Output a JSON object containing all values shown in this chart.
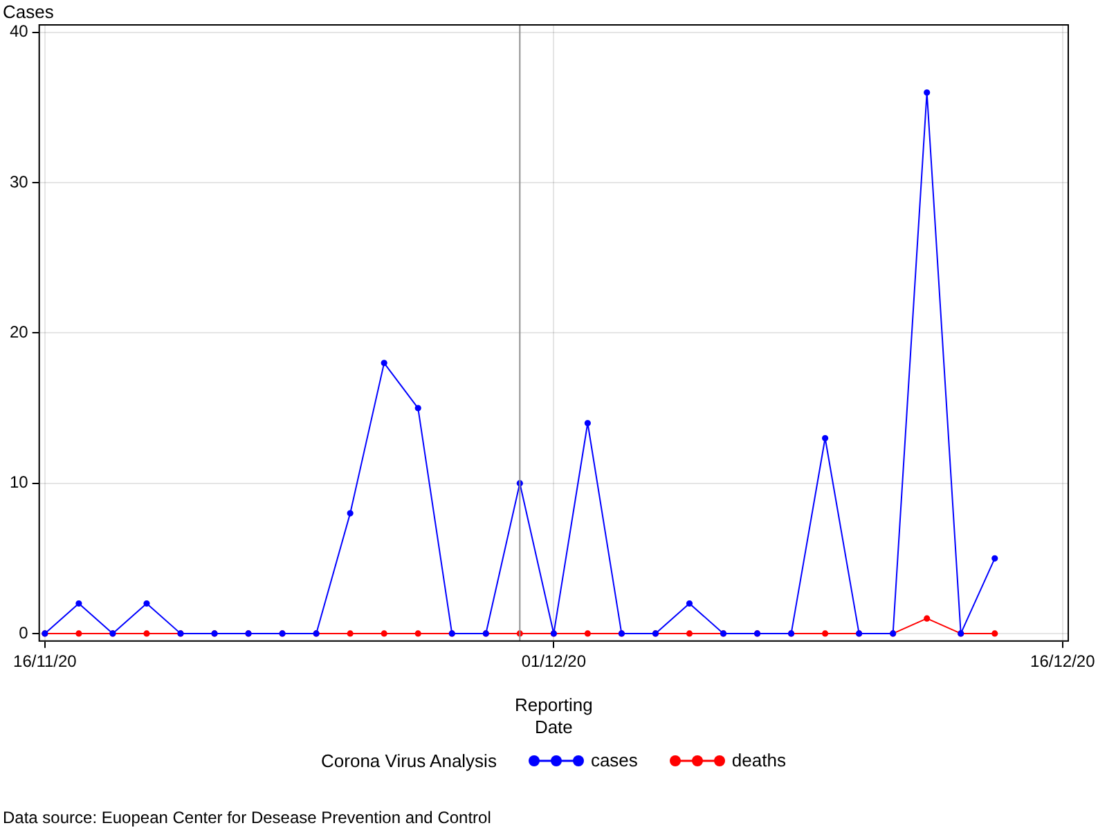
{
  "chart_data": {
    "type": "line",
    "xlabel": "Reporting Date",
    "ylabel": "Cases",
    "legend_title": "Corona Virus Analysis",
    "x": [
      "2020-11-16",
      "2020-11-17",
      "2020-11-18",
      "2020-11-19",
      "2020-11-20",
      "2020-11-21",
      "2020-11-22",
      "2020-11-23",
      "2020-11-24",
      "2020-11-25",
      "2020-11-26",
      "2020-11-27",
      "2020-11-28",
      "2020-11-29",
      "2020-11-30",
      "2020-12-01",
      "2020-12-02",
      "2020-12-03",
      "2020-12-04",
      "2020-12-05",
      "2020-12-06",
      "2020-12-07",
      "2020-12-08",
      "2020-12-09",
      "2020-12-10",
      "2020-12-11",
      "2020-12-12",
      "2020-12-13",
      "2020-12-14"
    ],
    "series": [
      {
        "name": "cases",
        "color": "#0000ff",
        "values": [
          0,
          2,
          0,
          2,
          0,
          0,
          0,
          0,
          0,
          8,
          18,
          15,
          0,
          0,
          10,
          0,
          14,
          0,
          0,
          2,
          0,
          0,
          0,
          13,
          0,
          0,
          36,
          0,
          5
        ]
      },
      {
        "name": "deaths",
        "color": "#ff0000",
        "values": [
          0,
          0,
          0,
          0,
          0,
          0,
          0,
          0,
          0,
          0,
          0,
          0,
          0,
          0,
          0,
          0,
          0,
          0,
          0,
          0,
          0,
          0,
          0,
          0,
          0,
          0,
          1,
          0,
          0
        ]
      }
    ],
    "xlim": [
      "2020-11-15T20:00",
      "2020-12-16T04:00"
    ],
    "xticks": [
      {
        "value": "2020-11-16",
        "label": "16/11/20"
      },
      {
        "value": "2020-12-01",
        "label": "01/12/20"
      },
      {
        "value": "2020-12-16",
        "label": "16/12/20"
      }
    ],
    "ylim": [
      -0.5,
      40.5
    ],
    "yticks": [
      0,
      10,
      20,
      30,
      40
    ],
    "ref_lines": [
      {
        "axis": "x",
        "value": "2020-11-30",
        "color": "#909090"
      }
    ],
    "grid": true,
    "legend": "bottom",
    "marker": "circle",
    "line_style": "solid",
    "annotations": [
      "Data source: Euopean Center for Desease Prevention and Control"
    ]
  }
}
